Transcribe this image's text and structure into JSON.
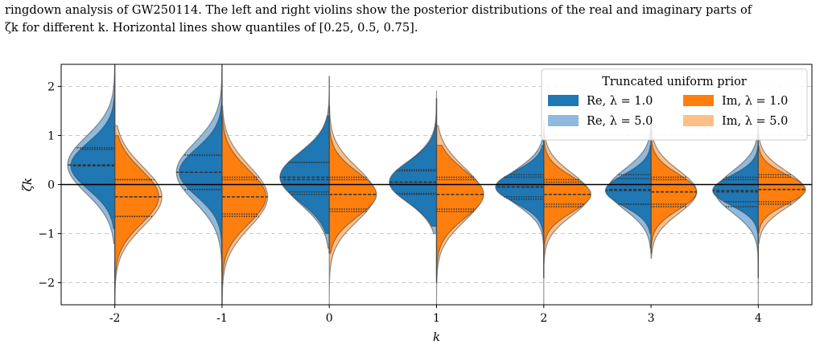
{
  "caption": {
    "line1": "ringdown analysis of GW250114. The left and right violins show the posterior distributions of the real and imaginary parts of",
    "line2": "ζk for different k. Horizontal lines show quantiles of [0.25, 0.5, 0.75]."
  },
  "chart_data": {
    "type": "violin",
    "xlabel": "k",
    "ylabel": "ζk",
    "categories": [
      "-2",
      "-1",
      "0",
      "1",
      "2",
      "3",
      "4"
    ],
    "ylim": [
      -2.45,
      2.45
    ],
    "yticks": [
      {
        "value": 2,
        "label": "2"
      },
      {
        "value": 1,
        "label": "1"
      },
      {
        "value": 0,
        "label": "0"
      },
      {
        "value": -1,
        "label": "−1"
      },
      {
        "value": -2,
        "label": "−2"
      }
    ],
    "grid": "horizontal dashed",
    "zero_line": true,
    "quantiles": [
      0.25,
      0.5,
      0.75
    ],
    "legend": {
      "title": "Truncated uniform prior",
      "placement": "top-right",
      "entries": [
        {
          "label": "Re, λ = 1.0",
          "color": "#1f77b4"
        },
        {
          "label": "Re, λ = 5.0",
          "color": "#8fbadd"
        },
        {
          "label": "Im, λ = 1.0",
          "color": "#ff7f0e"
        },
        {
          "label": "Im, λ = 5.0",
          "color": "#ffbf86"
        }
      ]
    },
    "series": [
      {
        "name": "Re, λ = 1.0",
        "side": "left",
        "color": "#1f77b4",
        "groups": [
          {
            "k": "-2",
            "median": 0.38,
            "sd": 0.48,
            "width": 0.82,
            "q25": 0.0,
            "q75": 0.72,
            "min": -0.9,
            "max": 2.45
          },
          {
            "k": "-1",
            "median": 0.25,
            "sd": 0.48,
            "width": 0.8,
            "q25": -0.1,
            "q75": 0.6,
            "min": -1.9,
            "max": 2.45
          },
          {
            "k": "0",
            "median": 0.15,
            "sd": 0.5,
            "width": 0.92,
            "q25": -0.15,
            "q75": 0.45,
            "min": -1.0,
            "max": 1.4
          },
          {
            "k": "1",
            "median": 0.05,
            "sd": 0.42,
            "width": 0.88,
            "q25": -0.18,
            "q75": 0.28,
            "min": -0.85,
            "max": 1.75
          },
          {
            "k": "2",
            "median": -0.05,
            "sd": 0.32,
            "width": 0.9,
            "q25": -0.25,
            "q75": 0.15,
            "min": -1.9,
            "max": 0.8
          },
          {
            "k": "3",
            "median": -0.12,
            "sd": 0.32,
            "width": 0.85,
            "q25": -0.4,
            "q75": 0.12,
            "min": -1.0,
            "max": 0.8
          },
          {
            "k": "4",
            "median": -0.12,
            "sd": 0.3,
            "width": 0.85,
            "q25": -0.35,
            "q75": 0.1,
            "min": -1.9,
            "max": 1.0
          }
        ]
      },
      {
        "name": "Re, λ = 5.0",
        "side": "left",
        "color": "#8fbadd",
        "groups": [
          {
            "k": "-2",
            "median": 0.4,
            "sd": 0.58,
            "width": 0.88,
            "q25": 0.0,
            "q75": 0.75,
            "min": -1.2,
            "max": 2.45
          },
          {
            "k": "-1",
            "median": 0.25,
            "sd": 0.6,
            "width": 0.85,
            "q25": -0.1,
            "q75": 0.6,
            "min": -1.8,
            "max": 2.45
          },
          {
            "k": "0",
            "median": 0.1,
            "sd": 0.52,
            "width": 0.85,
            "q25": -0.2,
            "q75": 0.45,
            "min": -1.3,
            "max": 2.2
          },
          {
            "k": "1",
            "median": 0.05,
            "sd": 0.45,
            "width": 0.8,
            "q25": -0.2,
            "q75": 0.3,
            "min": -1.0,
            "max": 1.9
          },
          {
            "k": "2",
            "median": -0.05,
            "sd": 0.38,
            "width": 0.8,
            "q25": -0.3,
            "q75": 0.2,
            "min": -2.45,
            "max": 0.9
          },
          {
            "k": "3",
            "median": -0.1,
            "sd": 0.42,
            "width": 0.8,
            "q25": -0.4,
            "q75": 0.2,
            "min": -1.3,
            "max": 1.3
          },
          {
            "k": "4",
            "median": -0.15,
            "sd": 0.42,
            "width": 0.8,
            "q25": -0.45,
            "q75": 0.15,
            "min": -2.45,
            "max": 1.8
          }
        ]
      },
      {
        "name": "Im, λ = 1.0",
        "side": "right",
        "color": "#ff7f0e",
        "groups": [
          {
            "k": "-2",
            "median": -0.25,
            "sd": 0.55,
            "width": 0.82,
            "q25": -0.65,
            "q75": 0.1,
            "min": -2.45,
            "max": 1.0
          },
          {
            "k": "-1",
            "median": -0.25,
            "sd": 0.55,
            "width": 0.82,
            "q25": -0.6,
            "q75": 0.1,
            "min": -2.45,
            "max": 1.4
          },
          {
            "k": "0",
            "median": -0.2,
            "sd": 0.45,
            "width": 0.88,
            "q25": -0.5,
            "q75": 0.1,
            "min": -1.4,
            "max": 1.6
          },
          {
            "k": "1",
            "median": -0.2,
            "sd": 0.48,
            "width": 0.88,
            "q25": -0.5,
            "q75": 0.1,
            "min": -2.0,
            "max": 0.8
          },
          {
            "k": "2",
            "median": -0.2,
            "sd": 0.36,
            "width": 0.88,
            "q25": -0.4,
            "q75": 0.05,
            "min": -1.4,
            "max": 1.1
          },
          {
            "k": "3",
            "median": -0.15,
            "sd": 0.36,
            "width": 0.85,
            "q25": -0.4,
            "q75": 0.1,
            "min": -1.4,
            "max": 1.2
          },
          {
            "k": "4",
            "median": -0.1,
            "sd": 0.3,
            "width": 0.88,
            "q25": -0.35,
            "q75": 0.15,
            "min": -1.0,
            "max": 0.8
          }
        ]
      },
      {
        "name": "Im, λ = 5.0",
        "side": "right",
        "color": "#ffbf86",
        "groups": [
          {
            "k": "-2",
            "median": -0.25,
            "sd": 0.6,
            "width": 0.88,
            "q25": -0.65,
            "q75": 0.1,
            "min": -2.45,
            "max": 1.2
          },
          {
            "k": "-1",
            "median": -0.25,
            "sd": 0.62,
            "width": 0.85,
            "q25": -0.65,
            "q75": 0.15,
            "min": -2.45,
            "max": 1.6
          },
          {
            "k": "0",
            "median": -0.2,
            "sd": 0.55,
            "width": 0.85,
            "q25": -0.55,
            "q75": 0.15,
            "min": -2.45,
            "max": 2.2
          },
          {
            "k": "1",
            "median": -0.2,
            "sd": 0.55,
            "width": 0.85,
            "q25": -0.55,
            "q75": 0.15,
            "min": -2.45,
            "max": 1.2
          },
          {
            "k": "2",
            "median": -0.2,
            "sd": 0.44,
            "width": 0.85,
            "q25": -0.45,
            "q75": 0.1,
            "min": -1.6,
            "max": 1.3
          },
          {
            "k": "3",
            "median": -0.15,
            "sd": 0.44,
            "width": 0.85,
            "q25": -0.45,
            "q75": 0.15,
            "min": -1.5,
            "max": 1.4
          },
          {
            "k": "4",
            "median": -0.1,
            "sd": 0.38,
            "width": 0.85,
            "q25": -0.4,
            "q75": 0.2,
            "min": -1.2,
            "max": 1.2
          }
        ]
      }
    ]
  }
}
